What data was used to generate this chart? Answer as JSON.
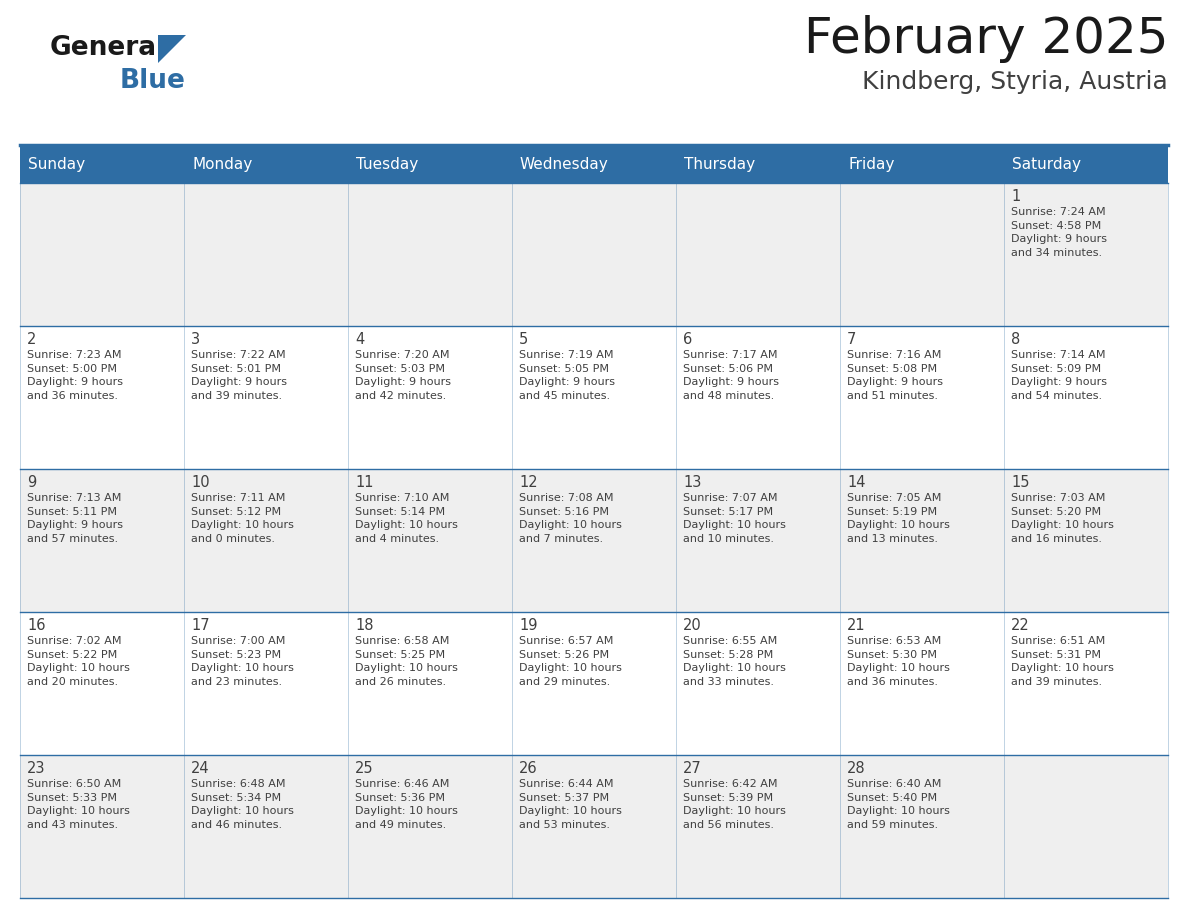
{
  "title": "February 2025",
  "subtitle": "Kindberg, Styria, Austria",
  "days_of_week": [
    "Sunday",
    "Monday",
    "Tuesday",
    "Wednesday",
    "Thursday",
    "Friday",
    "Saturday"
  ],
  "header_bg": "#2E6DA4",
  "header_text_color": "#FFFFFF",
  "cell_bg_odd": "#EFEFEF",
  "cell_bg_even": "#FFFFFF",
  "border_color": "#2E6DA4",
  "text_color": "#404040",
  "title_color": "#1a1a1a",
  "subtitle_color": "#404040",
  "logo_general_color": "#1a1a1a",
  "logo_blue_color": "#2E6DA4",
  "calendar_data": [
    [
      {
        "day": null,
        "info": null
      },
      {
        "day": null,
        "info": null
      },
      {
        "day": null,
        "info": null
      },
      {
        "day": null,
        "info": null
      },
      {
        "day": null,
        "info": null
      },
      {
        "day": null,
        "info": null
      },
      {
        "day": 1,
        "info": "Sunrise: 7:24 AM\nSunset: 4:58 PM\nDaylight: 9 hours\nand 34 minutes."
      }
    ],
    [
      {
        "day": 2,
        "info": "Sunrise: 7:23 AM\nSunset: 5:00 PM\nDaylight: 9 hours\nand 36 minutes."
      },
      {
        "day": 3,
        "info": "Sunrise: 7:22 AM\nSunset: 5:01 PM\nDaylight: 9 hours\nand 39 minutes."
      },
      {
        "day": 4,
        "info": "Sunrise: 7:20 AM\nSunset: 5:03 PM\nDaylight: 9 hours\nand 42 minutes."
      },
      {
        "day": 5,
        "info": "Sunrise: 7:19 AM\nSunset: 5:05 PM\nDaylight: 9 hours\nand 45 minutes."
      },
      {
        "day": 6,
        "info": "Sunrise: 7:17 AM\nSunset: 5:06 PM\nDaylight: 9 hours\nand 48 minutes."
      },
      {
        "day": 7,
        "info": "Sunrise: 7:16 AM\nSunset: 5:08 PM\nDaylight: 9 hours\nand 51 minutes."
      },
      {
        "day": 8,
        "info": "Sunrise: 7:14 AM\nSunset: 5:09 PM\nDaylight: 9 hours\nand 54 minutes."
      }
    ],
    [
      {
        "day": 9,
        "info": "Sunrise: 7:13 AM\nSunset: 5:11 PM\nDaylight: 9 hours\nand 57 minutes."
      },
      {
        "day": 10,
        "info": "Sunrise: 7:11 AM\nSunset: 5:12 PM\nDaylight: 10 hours\nand 0 minutes."
      },
      {
        "day": 11,
        "info": "Sunrise: 7:10 AM\nSunset: 5:14 PM\nDaylight: 10 hours\nand 4 minutes."
      },
      {
        "day": 12,
        "info": "Sunrise: 7:08 AM\nSunset: 5:16 PM\nDaylight: 10 hours\nand 7 minutes."
      },
      {
        "day": 13,
        "info": "Sunrise: 7:07 AM\nSunset: 5:17 PM\nDaylight: 10 hours\nand 10 minutes."
      },
      {
        "day": 14,
        "info": "Sunrise: 7:05 AM\nSunset: 5:19 PM\nDaylight: 10 hours\nand 13 minutes."
      },
      {
        "day": 15,
        "info": "Sunrise: 7:03 AM\nSunset: 5:20 PM\nDaylight: 10 hours\nand 16 minutes."
      }
    ],
    [
      {
        "day": 16,
        "info": "Sunrise: 7:02 AM\nSunset: 5:22 PM\nDaylight: 10 hours\nand 20 minutes."
      },
      {
        "day": 17,
        "info": "Sunrise: 7:00 AM\nSunset: 5:23 PM\nDaylight: 10 hours\nand 23 minutes."
      },
      {
        "day": 18,
        "info": "Sunrise: 6:58 AM\nSunset: 5:25 PM\nDaylight: 10 hours\nand 26 minutes."
      },
      {
        "day": 19,
        "info": "Sunrise: 6:57 AM\nSunset: 5:26 PM\nDaylight: 10 hours\nand 29 minutes."
      },
      {
        "day": 20,
        "info": "Sunrise: 6:55 AM\nSunset: 5:28 PM\nDaylight: 10 hours\nand 33 minutes."
      },
      {
        "day": 21,
        "info": "Sunrise: 6:53 AM\nSunset: 5:30 PM\nDaylight: 10 hours\nand 36 minutes."
      },
      {
        "day": 22,
        "info": "Sunrise: 6:51 AM\nSunset: 5:31 PM\nDaylight: 10 hours\nand 39 minutes."
      }
    ],
    [
      {
        "day": 23,
        "info": "Sunrise: 6:50 AM\nSunset: 5:33 PM\nDaylight: 10 hours\nand 43 minutes."
      },
      {
        "day": 24,
        "info": "Sunrise: 6:48 AM\nSunset: 5:34 PM\nDaylight: 10 hours\nand 46 minutes."
      },
      {
        "day": 25,
        "info": "Sunrise: 6:46 AM\nSunset: 5:36 PM\nDaylight: 10 hours\nand 49 minutes."
      },
      {
        "day": 26,
        "info": "Sunrise: 6:44 AM\nSunset: 5:37 PM\nDaylight: 10 hours\nand 53 minutes."
      },
      {
        "day": 27,
        "info": "Sunrise: 6:42 AM\nSunset: 5:39 PM\nDaylight: 10 hours\nand 56 minutes."
      },
      {
        "day": 28,
        "info": "Sunrise: 6:40 AM\nSunset: 5:40 PM\nDaylight: 10 hours\nand 59 minutes."
      },
      {
        "day": null,
        "info": null
      }
    ]
  ],
  "num_weeks": 5,
  "num_cols": 7,
  "fig_width": 11.88,
  "fig_height": 9.18,
  "dpi": 100
}
